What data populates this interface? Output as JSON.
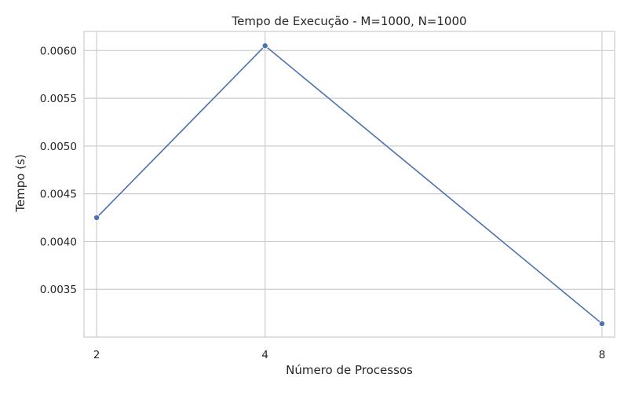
{
  "colors": {
    "series": "#4c72b0",
    "grid": "#cccccc",
    "frame": "#cccccc",
    "text": "#262626",
    "background": "#ffffff"
  },
  "chart_data": {
    "type": "line",
    "title": "Tempo de Execução - M=1000, N=1000",
    "xlabel": "Número de Processos",
    "ylabel": "Tempo (s)",
    "x": [
      2,
      4,
      8
    ],
    "series": [
      {
        "values": [
          0.00425,
          0.00605,
          0.00314
        ],
        "marker": "circle"
      }
    ],
    "x_ticks": [
      "2",
      "4",
      "8"
    ],
    "y_ticks": [
      "0.0035",
      "0.0040",
      "0.0045",
      "0.0050",
      "0.0055",
      "0.0060"
    ],
    "xlim": [
      1.85,
      8.15
    ],
    "ylim": [
      0.003,
      0.0062
    ],
    "grid": true,
    "legend": "none"
  }
}
